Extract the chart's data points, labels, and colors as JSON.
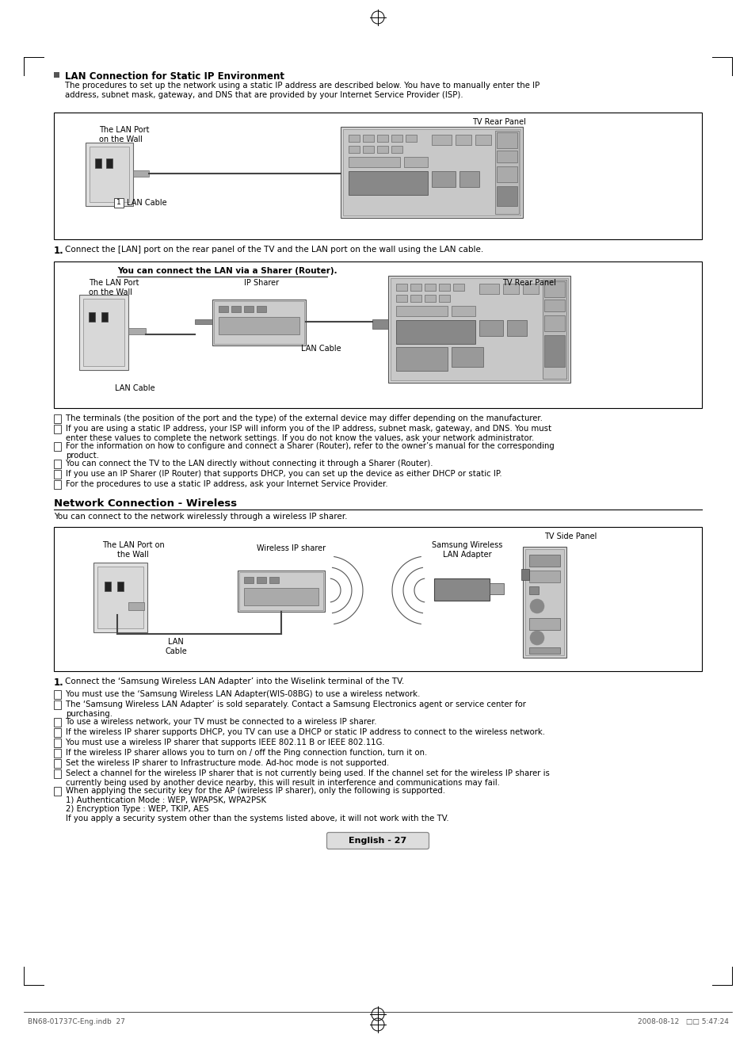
{
  "page_bg": "#ffffff",
  "title_section1": "LAN Connection for Static IP Environment",
  "title_section1_intro": "The procedures to set up the network using a static IP address are described below. You have to manually enter the IP\naddress, subnet mask, gateway, and DNS that are provided by your Internet Service Provider (ISP).",
  "diagram1_label": "TV Rear Panel",
  "diagram1_sublabel1": "The LAN Port\non the Wall",
  "diagram1_cable_label": "¹  LAN Cable",
  "step1_text": "Connect the [LAN] port on the rear panel of the TV and the LAN port on the wall using the LAN cable.",
  "diagram2_header": "You can connect the LAN via a Sharer (Router).",
  "diagram2_label_left": "The LAN Port\non the Wall",
  "diagram2_label_mid": "IP Sharer",
  "diagram2_label_right": "TV Rear Panel",
  "diagram2_cable1": "LAN Cable",
  "diagram2_cable2": "LAN Cable",
  "note1": "The terminals (the position of the port and the type) of the external device may differ depending on the manufacturer.",
  "note2": "If you are using a static IP address, your ISP will inform you of the IP address, subnet mask, gateway, and DNS. You must\nenter these values to complete the network settings. If you do not know the values, ask your network administrator.",
  "note3": "For the information on how to configure and connect a Sharer (Router), refer to the owner’s manual for the corresponding\nproduct.",
  "note4": "You can connect the TV to the LAN directly without connecting it through a Sharer (Router).",
  "note5": "If you use an IP Sharer (IP Router) that supports DHCP, you can set up the device as either DHCP or static IP.",
  "note6": "For the procedures to use a static IP address, ask your Internet Service Provider.",
  "section2_title": "Network Connection - Wireless",
  "section2_intro": "You can connect to the network wirelessly through a wireless IP sharer.",
  "diagram3_label_right": "TV Side Panel",
  "diagram3_label_adapter": "Samsung Wireless\nLAN Adapter",
  "diagram3_label_left": "The LAN Port on\nthe Wall",
  "diagram3_label_sharer": "Wireless IP sharer",
  "diagram3_label_cable": "LAN\nCable",
  "step2_text": "Connect the ‘Samsung Wireless LAN Adapter’ into the Wiselink terminal of the TV.",
  "note_w1": "You must use the ‘Samsung Wireless LAN Adapter(WIS-08BG) to use a wireless network.",
  "note_w2": "The ‘Samsung Wireless LAN Adapter’ is sold separately. Contact a Samsung Electronics agent or service center for\npurchasing.",
  "note_w3": "To use a wireless network, your TV must be connected to a wireless IP sharer.",
  "note_w4": "If the wireless IP sharer supports DHCP, you TV can use a DHCP or static IP address to connect to the wireless network.",
  "note_w5": "You must use a wireless IP sharer that supports IEEE 802.11 B or IEEE 802.11G.",
  "note_w6": "If the wireless IP sharer allows you to turn on / off the Ping connection function, turn it on.",
  "note_w7": "Set the wireless IP sharer to Infrastructure mode. Ad-hoc mode is not supported.",
  "note_w8": "Select a channel for the wireless IP sharer that is not currently being used. If the channel set for the wireless IP sharer is\ncurrently being used by another device nearby, this will result in interference and communications may fail.",
  "note_w9": "When applying the security key for the AP (wireless IP sharer), only the following is supported.\n1) Authentication Mode : WEP, WPAPSK, WPA2PSK\n2) Encryption Type : WEP, TKIP, AES\nIf you apply a security system other than the systems listed above, it will not work with the TV.",
  "page_label": "English - 27",
  "footer_left": "BN68-01737C-Eng.indb  27",
  "footer_right": "2008-08-12   □□ 5:47:24"
}
